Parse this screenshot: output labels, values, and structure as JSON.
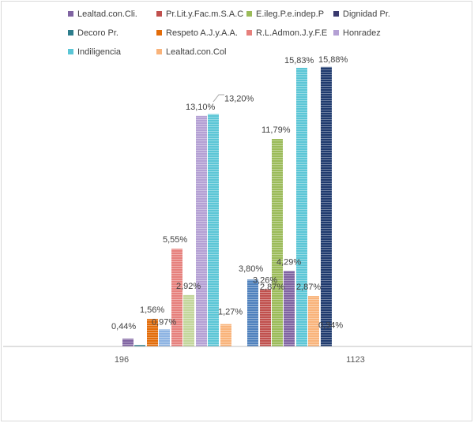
{
  "chart_data": {
    "type": "bar",
    "title": "",
    "xlabel": "",
    "ylabel": "",
    "ylim": [
      0,
      16.5
    ],
    "grid": false,
    "legend_position": "top",
    "categories": [
      "196",
      "1123"
    ],
    "series": [
      {
        "name": "Lealtad.con.Cli.",
        "color": "#8064a2",
        "values": [
          0.44,
          4.29
        ],
        "labels": [
          "0,44%",
          "4,29%"
        ]
      },
      {
        "name": "Pr.Lit.y.Fac.m.S.A.C",
        "color": "#c0504d",
        "values": [
          null,
          3.26
        ],
        "labels": [
          "",
          "3,26%"
        ]
      },
      {
        "name": "E.ileg.P.e.indep.P",
        "color": "#9bbb59",
        "values": [
          null,
          2.87
        ],
        "labels": [
          "",
          "2,87%"
        ]
      },
      {
        "name": "Dignidad Pr.",
        "color": "#3a3a6e",
        "values": [
          null,
          0.34
        ],
        "labels": [
          "",
          "0,34%"
        ]
      },
      {
        "name": "Decoro Pr.",
        "color": "#2e7d8c",
        "values": [
          0.08,
          null
        ],
        "labels": [
          "",
          ""
        ]
      },
      {
        "name": "Respeto A.J.y.A.A.",
        "color": "#e36c09",
        "values": [
          1.56,
          null
        ],
        "labels": [
          "1,56%",
          ""
        ]
      },
      {
        "name": "R.L.Admon.J.y.F.E",
        "color": "#e6807c",
        "values": [
          5.55,
          null
        ],
        "labels": [
          "5,55%",
          ""
        ]
      },
      {
        "name": "Honradez",
        "color": "#b4a0d4",
        "values": [
          13.1,
          null
        ],
        "labels": [
          "13,10%",
          ""
        ]
      },
      {
        "name": "Indiligencia",
        "color": "#5bc6d6",
        "values": [
          13.2,
          15.83
        ],
        "labels": [
          "13,20%",
          "15,83%"
        ]
      },
      {
        "name": "Lealtad.con.Col",
        "color": "#f9b37a",
        "values": [
          1.27,
          2.87
        ],
        "labels": [
          "1,27%",
          "2,87%"
        ]
      }
    ],
    "extra_bars": [
      {
        "category": "196",
        "color": "#8db3e2",
        "value": 0.97,
        "label": "0,97%"
      },
      {
        "category": "196",
        "color": "#c3d69b",
        "value": 2.92,
        "label": "2,92%"
      },
      {
        "category": "1123",
        "color": "#4f81bd",
        "value": 3.8,
        "label": "3,80%"
      },
      {
        "category": "1123",
        "color": "#9bbb59",
        "value": 11.79,
        "label": "11,79%"
      },
      {
        "category": "1123",
        "color": "#1f3a6e",
        "value": 15.88,
        "label": "15,88%"
      }
    ]
  }
}
